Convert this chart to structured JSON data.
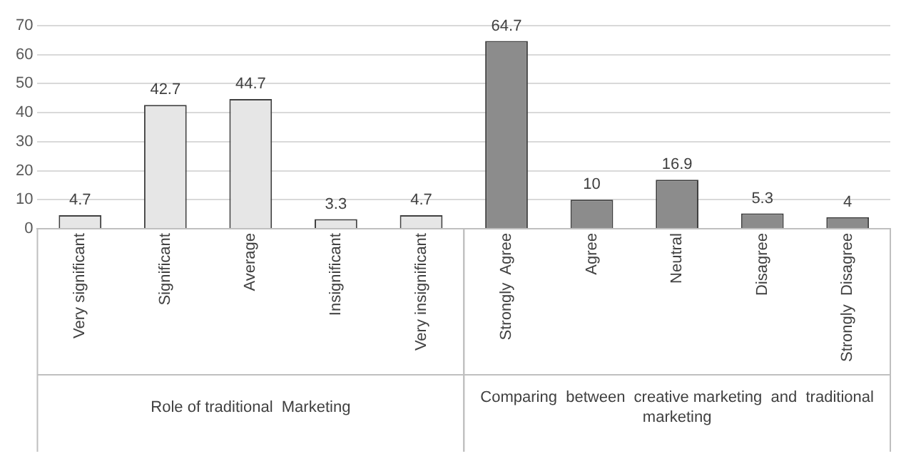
{
  "chart_data": {
    "type": "bar",
    "categories": [
      "Very significant",
      "Significant",
      "Average",
      "Insignificant",
      "Very insignificant",
      "Strongly  Agree",
      "Agree",
      "Neutral",
      "Disagree",
      "Strongly  Disagree"
    ],
    "series": [
      {
        "color": "#e6e6e6",
        "values": [
          4.7,
          42.7,
          44.7,
          3.3,
          4.7,
          null,
          null,
          null,
          null,
          null
        ]
      },
      {
        "color": "#8c8c8c",
        "values": [
          null,
          null,
          null,
          null,
          null,
          64.7,
          10,
          16.9,
          5.3,
          4
        ]
      }
    ],
    "ylim": [
      0,
      70
    ],
    "yticks": [
      0,
      10,
      20,
      30,
      40,
      50,
      60,
      70
    ],
    "grid": "y",
    "legend": false,
    "data_labels": true,
    "annotations": [
      "Role of traditional  Marketing",
      "Comparing  between  creative marketing  and  traditional marketing"
    ]
  }
}
